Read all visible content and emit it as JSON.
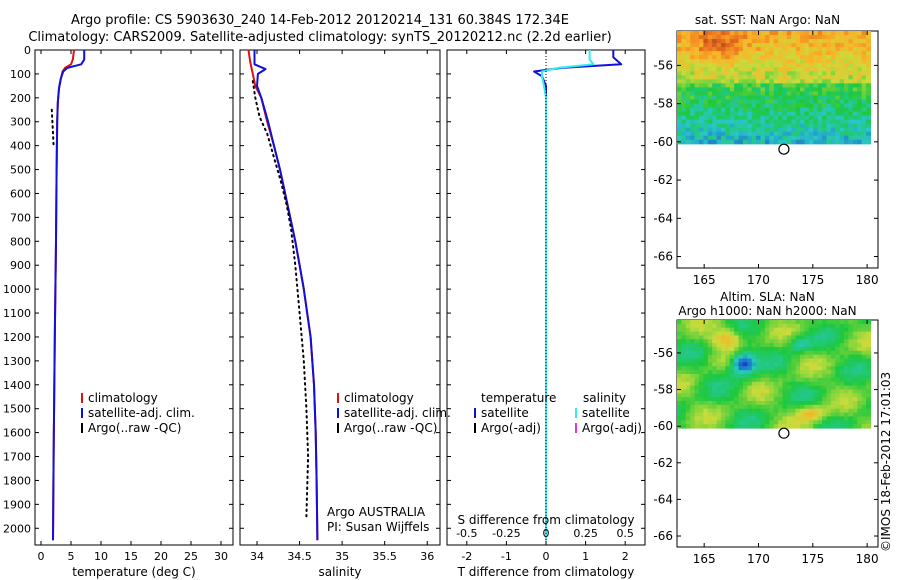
{
  "header": {
    "line1": "Argo profile: CS 5903630_240 14-Feb-2012 20120214_131 60.384S 172.34E",
    "line2": "Climatology: CARS2009. Satellite-adjusted climatology: synTS_20120212.nc (2.2d earlier)"
  },
  "colors": {
    "climatology": "#dd1111",
    "satellite": "#1010dd",
    "argo": "#000000",
    "sat_salinity": "#33eeee",
    "argo_adj_salinity": "#dd33dd"
  },
  "depth_axis": {
    "ticks": [
      0,
      100,
      200,
      300,
      400,
      500,
      600,
      700,
      800,
      900,
      1000,
      1100,
      1200,
      1300,
      1400,
      1500,
      1600,
      1700,
      1800,
      1900,
      2000
    ],
    "ylim": [
      0,
      2070
    ]
  },
  "chart_data": [
    {
      "type": "line",
      "xlabel": "temperature (deg C)",
      "xlim": [
        -1,
        32
      ],
      "xticks": [
        0,
        5,
        10,
        15,
        20,
        25,
        30
      ],
      "legend": {
        "items": [
          "climatology",
          "satellite-adj. clim.",
          "Argo(..raw -QC)"
        ]
      },
      "series": [
        {
          "name": "climatology",
          "depth": [
            0,
            40,
            60,
            75,
            90,
            120,
            160,
            220,
            300,
            500,
            800,
            1200,
            1700,
            2050
          ],
          "values": [
            5.5,
            5.3,
            5.0,
            4.0,
            3.6,
            3.3,
            3.0,
            2.8,
            2.7,
            2.6,
            2.5,
            2.3,
            2.1,
            2.0
          ]
        },
        {
          "name": "satellite-adj. clim.",
          "depth": [
            0,
            40,
            60,
            75,
            90,
            120,
            160,
            220,
            300,
            500,
            800,
            1200,
            1700,
            2050
          ],
          "values": [
            7.2,
            7.2,
            6.7,
            4.4,
            3.7,
            3.3,
            3.0,
            2.8,
            2.7,
            2.6,
            2.5,
            2.3,
            2.1,
            2.0
          ]
        },
        {
          "name": "Argo(..raw -QC)",
          "depth": [
            250,
            300,
            350,
            400
          ],
          "values": [
            1.8,
            1.9,
            2.0,
            2.1
          ]
        }
      ]
    },
    {
      "type": "line",
      "xlabel": "salinity",
      "xlim": [
        33.8,
        36.15
      ],
      "xticks": [
        "34",
        "34.5",
        "35",
        "35.5",
        "36"
      ],
      "legend": {
        "items": [
          "climatology",
          "satellite-adj. clim.",
          "Argo(..raw -QC)"
        ]
      },
      "annotation": [
        "Argo AUSTRALIA",
        "PI: Susan Wijffels"
      ],
      "series": [
        {
          "name": "climatology",
          "depth": [
            0,
            50,
            100,
            150,
            200,
            300,
            400,
            500,
            600,
            700,
            800,
            900,
            1000,
            1200,
            1400,
            1600,
            1800,
            2050
          ],
          "values": [
            33.9,
            33.92,
            33.95,
            33.98,
            34.05,
            34.12,
            34.2,
            34.27,
            34.33,
            34.39,
            34.45,
            34.5,
            34.55,
            34.63,
            34.67,
            34.69,
            34.7,
            34.71
          ]
        },
        {
          "name": "satellite-adj. clim.",
          "depth": [
            0,
            60,
            80,
            100,
            150,
            200,
            300,
            400,
            500,
            600,
            700,
            800,
            900,
            1000,
            1200,
            1400,
            1600,
            1800,
            2050
          ],
          "values": [
            33.97,
            33.97,
            34.1,
            34.01,
            34.0,
            34.05,
            34.13,
            34.2,
            34.27,
            34.33,
            34.39,
            34.45,
            34.5,
            34.55,
            34.63,
            34.67,
            34.69,
            34.7,
            34.71
          ]
        },
        {
          "name": "Argo(..raw -QC)",
          "depth": [
            130,
            200,
            280,
            350,
            450,
            550,
            650,
            750,
            900,
            1100,
            1300,
            1500,
            1700,
            1950
          ],
          "values": [
            33.95,
            33.98,
            34.03,
            34.12,
            34.2,
            34.28,
            34.35,
            34.4,
            34.45,
            34.5,
            34.55,
            34.58,
            34.6,
            34.58
          ]
        }
      ]
    },
    {
      "type": "line",
      "xlabel": "T difference from climatology",
      "xlabel_top": "S difference from climatology",
      "xlim": [
        -2.5,
        2.5
      ],
      "xticks": [
        "-2",
        "-1",
        "0",
        "1",
        "2"
      ],
      "xticks_top": [
        "-0.5",
        "-0.25",
        "0",
        "0.25",
        "0.5"
      ],
      "legend": {
        "temperature_heading": "temperature",
        "salinity_heading": "salinity",
        "temperature_items": [
          "satellite",
          "Argo(-adj)"
        ],
        "salinity_items": [
          "satellite",
          "Argo(-adj)"
        ]
      },
      "series": [
        {
          "name": "temperature satellite",
          "depth": [
            0,
            30,
            60,
            75,
            90,
            110,
            150,
            200,
            300,
            500,
            1000,
            2050
          ],
          "values": [
            1.7,
            1.7,
            1.9,
            0.4,
            -0.3,
            -0.1,
            0,
            0,
            0,
            0,
            0,
            0
          ]
        },
        {
          "name": "salinity satellite",
          "depth": [
            0,
            40,
            60,
            75,
            90,
            110,
            150,
            200,
            300,
            500,
            1000,
            2050
          ],
          "values": [
            1.1,
            1.1,
            1.2,
            0.3,
            -0.1,
            -0.1,
            -0.05,
            0,
            0,
            0,
            0,
            0
          ]
        }
      ]
    }
  ],
  "maps": [
    {
      "title_lines": [
        "sat. SST: NaN Argo: NaN"
      ],
      "xticks": [
        "165",
        "170",
        "175",
        "180"
      ],
      "yticks": [
        "-56",
        "-58",
        "-60",
        "-62",
        "-64",
        "-66"
      ],
      "lon_range": [
        162.5,
        181.0
      ],
      "lat_range": [
        -66.6,
        -54.2
      ],
      "data_extent": {
        "lon": [
          162.5,
          180.3
        ],
        "lat": [
          -60.1,
          -54.2
        ]
      },
      "marker": {
        "lon": 172.34,
        "lat": -60.384
      },
      "palette": "sst",
      "seed": 7
    },
    {
      "title_lines": [
        "Altim. SLA: NaN",
        "Argo h1000: NaN h2000: NaN"
      ],
      "xticks": [
        "165",
        "170",
        "175",
        "180"
      ],
      "yticks": [
        "-56",
        "-58",
        "-60",
        "-62",
        "-64",
        "-66"
      ],
      "lon_range": [
        162.5,
        181.0
      ],
      "lat_range": [
        -66.6,
        -54.2
      ],
      "data_extent": {
        "lon": [
          162.5,
          180.3
        ],
        "lat": [
          -60.1,
          -54.2
        ]
      },
      "marker": {
        "lon": 172.34,
        "lat": -60.384
      },
      "palette": "sla",
      "seed": 3
    }
  ],
  "stamp": "©IMOS 18-Feb-2012 17:01:03"
}
